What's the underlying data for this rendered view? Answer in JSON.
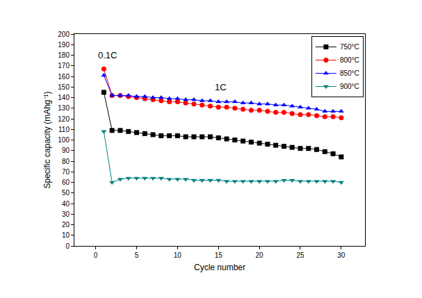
{
  "chart_data": {
    "type": "line",
    "xlabel": "Cycle number",
    "ylabel": "Specific capacity (mAhg⁻¹)",
    "x": [
      1,
      2,
      3,
      4,
      5,
      6,
      7,
      8,
      9,
      10,
      11,
      12,
      13,
      14,
      15,
      16,
      17,
      18,
      19,
      20,
      21,
      22,
      23,
      24,
      25,
      26,
      27,
      28,
      29,
      30
    ],
    "series": [
      {
        "name": "750°C",
        "color": "#000000",
        "marker": "square",
        "line_style": "solid",
        "values": [
          145,
          109,
          109,
          108,
          107,
          106,
          105,
          104,
          104,
          104,
          103,
          103,
          103,
          103,
          102,
          101,
          100,
          99,
          98,
          97,
          96,
          95,
          94,
          93,
          92,
          92,
          91,
          89,
          87,
          84
        ]
      },
      {
        "name": "800°C",
        "color": "#ff0000",
        "marker": "circle",
        "line_style": "solid",
        "values": [
          167,
          142,
          142,
          141,
          140,
          139,
          138,
          137,
          136,
          136,
          135,
          134,
          133,
          132,
          131,
          131,
          130,
          129,
          128,
          128,
          127,
          126,
          126,
          125,
          124,
          124,
          123,
          122,
          122,
          121
        ]
      },
      {
        "name": "850°C",
        "color": "#0000ff",
        "marker": "triangle-up",
        "line_style": "solid",
        "values": [
          161,
          142,
          142,
          142,
          141,
          141,
          140,
          140,
          139,
          139,
          138,
          138,
          137,
          137,
          136,
          136,
          136,
          135,
          135,
          134,
          134,
          133,
          133,
          132,
          131,
          130,
          129,
          127,
          127,
          127
        ]
      },
      {
        "name": "900°C",
        "color": "#008080",
        "marker": "triangle-down",
        "line_style": "solid",
        "values": [
          108,
          60,
          63,
          64,
          64,
          64,
          64,
          64,
          63,
          63,
          63,
          62,
          62,
          62,
          62,
          61,
          61,
          61,
          61,
          61,
          61,
          61,
          62,
          62,
          61,
          61,
          61,
          61,
          61,
          60
        ]
      }
    ],
    "xlim": [
      -2.6,
      32.9
    ],
    "xticks": [
      0,
      5,
      10,
      15,
      20,
      25,
      30
    ],
    "ylim": [
      0,
      200
    ],
    "yticks": [
      0,
      10,
      20,
      30,
      40,
      50,
      60,
      70,
      80,
      90,
      100,
      110,
      120,
      130,
      140,
      150,
      160,
      170,
      180,
      190,
      200
    ],
    "annotations": [
      {
        "text": "0.1C",
        "x": 1.4,
        "y": 180
      },
      {
        "text": "1C",
        "x": 15.3,
        "y": 150
      }
    ],
    "legend": "upper right",
    "grid": false
  }
}
